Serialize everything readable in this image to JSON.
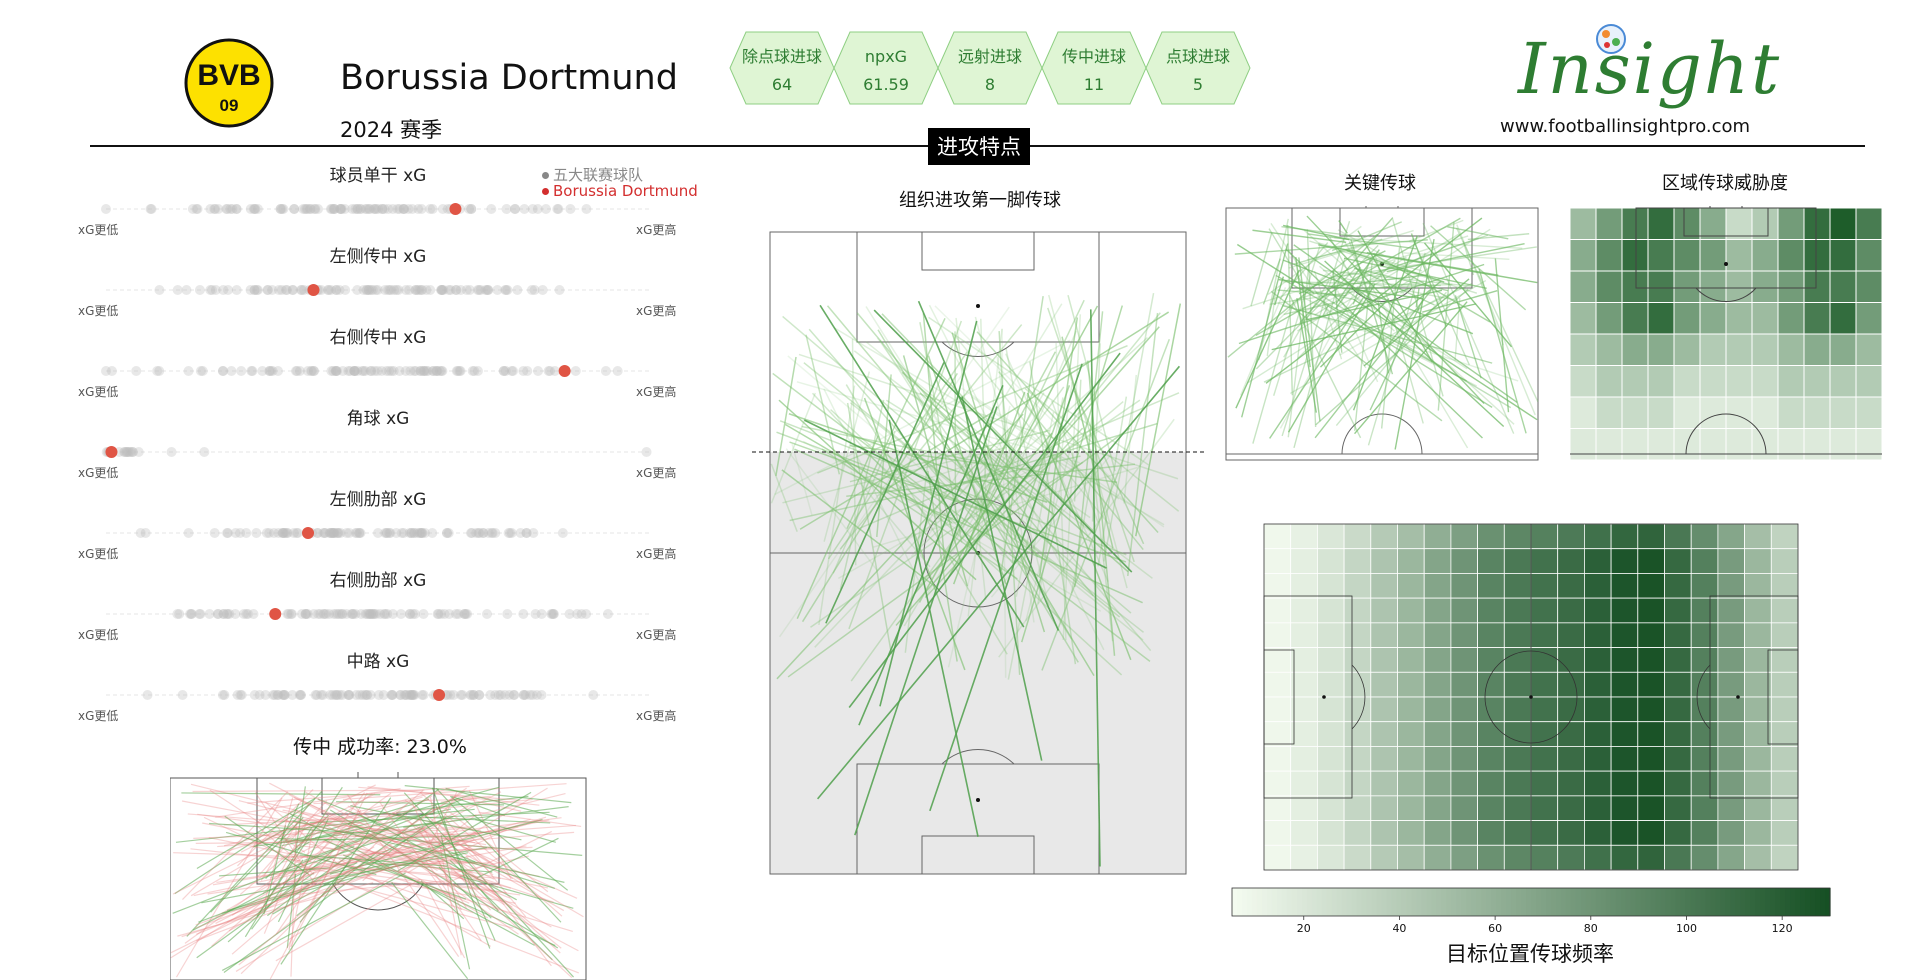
{
  "header": {
    "team_name": "Borussia Dortmund",
    "season": "2024 赛季",
    "crest_text_top": "BVB",
    "crest_text_bottom": "09",
    "section_title": "进攻特点",
    "logo_word": "Insight",
    "logo_url": "www.footballinsightpro.com"
  },
  "stats": [
    {
      "label": "除点球进球",
      "value": "64"
    },
    {
      "label": "npxG",
      "value": "61.59"
    },
    {
      "label": "远射进球",
      "value": "8"
    },
    {
      "label": "传中进球",
      "value": "11"
    },
    {
      "label": "点球进球",
      "value": "5"
    }
  ],
  "legend": {
    "league": "五大联赛球队",
    "team": "Borussia Dortmund"
  },
  "colors": {
    "team_dot": "#e05545",
    "league_dot": "#cfcfcf",
    "stat_hex_fill": "#dff5d4",
    "stat_hex_stroke": "#8fcf83",
    "stat_text": "#2e7d32",
    "green_dark": "#1e5d2a",
    "green_light": "#f2faef"
  },
  "xg_strips": {
    "low_label": "xG更低",
    "high_label": "xG更高",
    "rows": [
      {
        "title": "球员单干 xG",
        "team_position": 0.64
      },
      {
        "title": "左侧传中 xG",
        "team_position": 0.38
      },
      {
        "title": "右侧传中 xG",
        "team_position": 0.84
      },
      {
        "title": "角球 xG",
        "team_position": 0.01
      },
      {
        "title": "左侧肋部 xG",
        "team_position": 0.37
      },
      {
        "title": "右侧肋部 xG",
        "team_position": 0.31
      },
      {
        "title": "中路 xG",
        "team_position": 0.61
      }
    ]
  },
  "panels": {
    "cross_title": "传中 成功率: 23.0%",
    "buildup_title": "组织进攻第一脚传球",
    "key_pass_title": "关键传球",
    "zone_threat_title": "区域传球威胁度"
  },
  "chart_data": [
    {
      "type": "heatmap",
      "title": "",
      "colorbar_label": "目标位置传球频率",
      "colorbar_ticks": [
        20,
        40,
        60,
        80,
        100,
        120
      ],
      "colorbar_range": [
        5,
        130
      ],
      "column_values": [
        8,
        14,
        22,
        32,
        45,
        55,
        68,
        80,
        92,
        100,
        105,
        110,
        118,
        126,
        128,
        112,
        95,
        75,
        55,
        38
      ]
    },
    {
      "type": "heatmap",
      "title": "区域传球威胁度",
      "grid_values": [
        [
          0.4,
          0.6,
          0.8,
          0.9,
          0.7,
          0.5,
          0.2,
          0.3,
          0.6,
          0.9,
          1.0,
          0.8
        ],
        [
          0.5,
          0.7,
          0.9,
          0.8,
          0.7,
          0.6,
          0.4,
          0.5,
          0.7,
          0.9,
          0.9,
          0.7
        ],
        [
          0.5,
          0.7,
          0.8,
          0.8,
          0.6,
          0.5,
          0.4,
          0.5,
          0.6,
          0.8,
          0.8,
          0.7
        ],
        [
          0.4,
          0.6,
          0.8,
          0.9,
          0.6,
          0.5,
          0.4,
          0.4,
          0.6,
          0.8,
          0.9,
          0.6
        ],
        [
          0.3,
          0.4,
          0.5,
          0.5,
          0.4,
          0.3,
          0.3,
          0.3,
          0.4,
          0.5,
          0.5,
          0.4
        ],
        [
          0.2,
          0.3,
          0.3,
          0.3,
          0.2,
          0.2,
          0.2,
          0.2,
          0.3,
          0.3,
          0.3,
          0.3
        ],
        [
          0.1,
          0.2,
          0.2,
          0.2,
          0.1,
          0.1,
          0.1,
          0.1,
          0.2,
          0.2,
          0.2,
          0.2
        ],
        [
          0.1,
          0.1,
          0.1,
          0.1,
          0.1,
          0.1,
          0.1,
          0.1,
          0.1,
          0.1,
          0.1,
          0.1
        ]
      ]
    }
  ]
}
